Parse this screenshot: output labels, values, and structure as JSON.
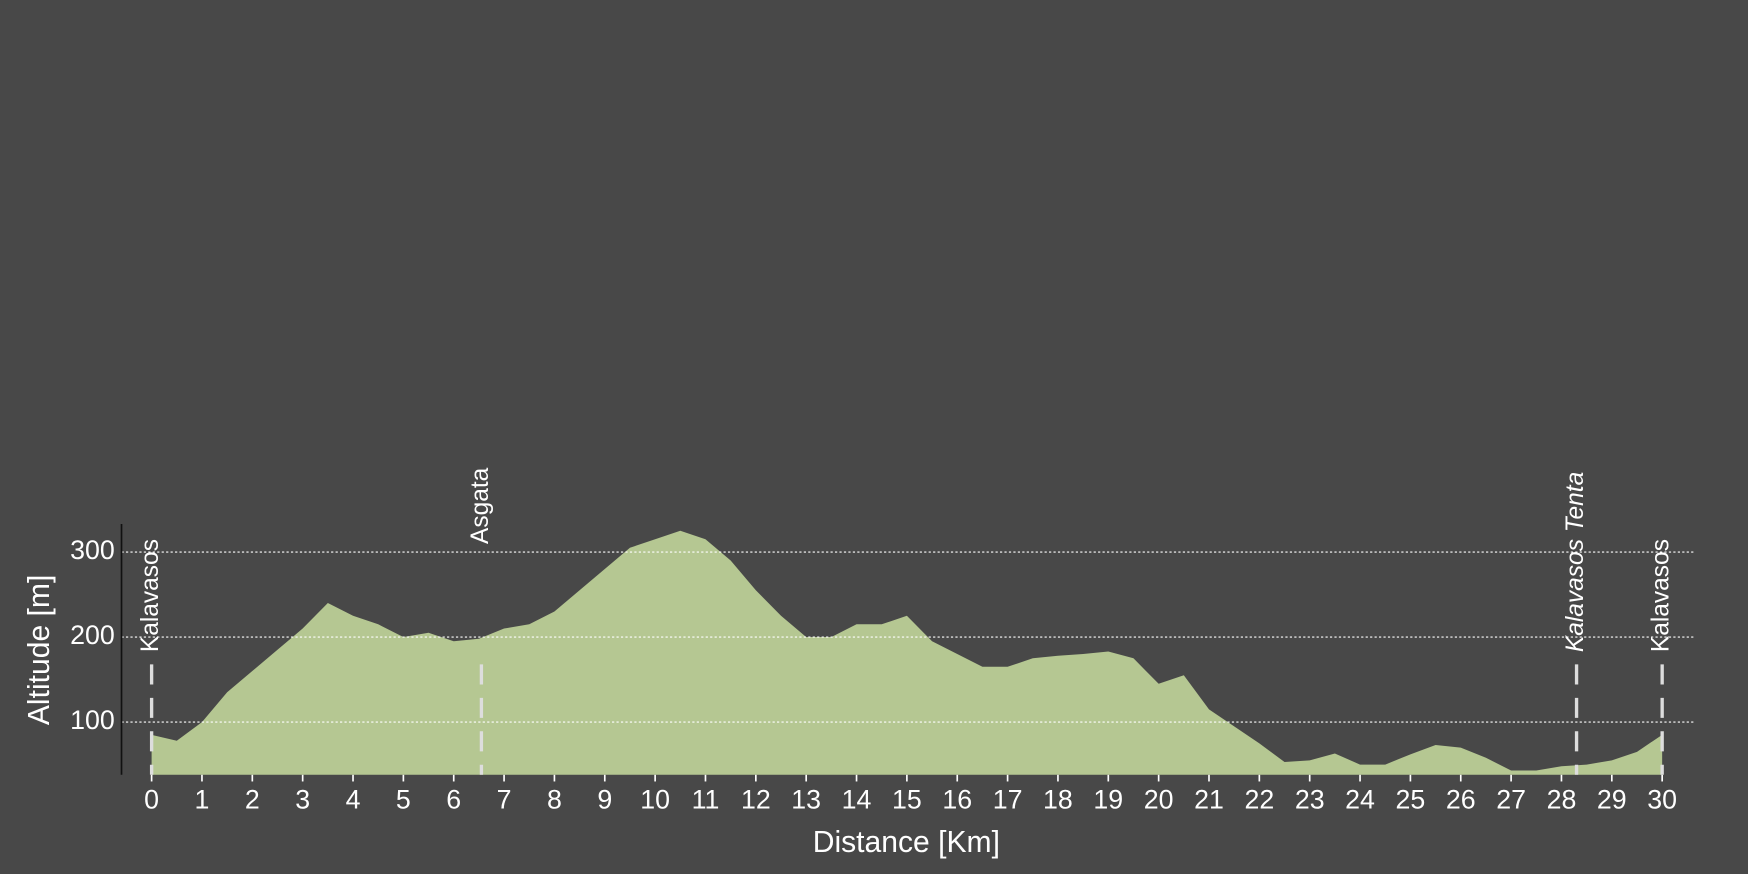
{
  "chart_data": {
    "type": "area",
    "xlabel": "Distance [Km]",
    "ylabel": "Altitude [m]",
    "x": [
      0,
      0.5,
      1,
      1.5,
      2,
      2.5,
      3,
      3.5,
      4,
      4.5,
      5,
      5.5,
      6,
      6.5,
      7,
      7.5,
      8,
      8.5,
      9,
      9.5,
      10,
      10.5,
      11,
      11.5,
      12,
      12.5,
      13,
      13.5,
      14,
      14.5,
      15,
      15.5,
      16,
      16.5,
      17,
      17.5,
      18,
      18.5,
      19,
      19.5,
      20,
      20.5,
      21,
      21.5,
      22,
      22.5,
      23,
      23.5,
      24,
      24.5,
      25,
      25.5,
      26,
      26.5,
      27,
      27.5,
      28,
      28.5,
      29,
      29.5,
      30
    ],
    "series": [
      {
        "name": "Altitude",
        "color": "#b5c792",
        "values": [
          85,
          78,
          100,
          135,
          160,
          185,
          210,
          240,
          225,
          215,
          200,
          205,
          195,
          198,
          210,
          215,
          230,
          255,
          280,
          305,
          315,
          325,
          315,
          290,
          255,
          225,
          200,
          200,
          215,
          215,
          225,
          195,
          180,
          165,
          165,
          175,
          178,
          180,
          183,
          175,
          145,
          155,
          115,
          95,
          75,
          53,
          55,
          63,
          50,
          50,
          62,
          73,
          70,
          58,
          43,
          43,
          48,
          50,
          55,
          65,
          85
        ]
      }
    ],
    "xlim": [
      0,
      30
    ],
    "xticks": [
      0,
      1,
      2,
      3,
      4,
      5,
      6,
      7,
      8,
      9,
      10,
      11,
      12,
      13,
      14,
      15,
      16,
      17,
      18,
      19,
      20,
      21,
      22,
      23,
      24,
      25,
      26,
      27,
      28,
      29,
      30
    ],
    "ylim": [
      38,
      333
    ],
    "yticks": [
      100,
      200,
      300
    ],
    "grid": true,
    "waypoints": [
      {
        "x": 0,
        "label": "Kalavasos",
        "italic": false
      },
      {
        "x": 6.55,
        "label": "Asgata",
        "italic": false
      },
      {
        "x": 28.3,
        "label": "Kalavasos Tenta",
        "italic": true
      },
      {
        "x": 30,
        "label": "Kalavasos",
        "italic": false
      }
    ]
  }
}
